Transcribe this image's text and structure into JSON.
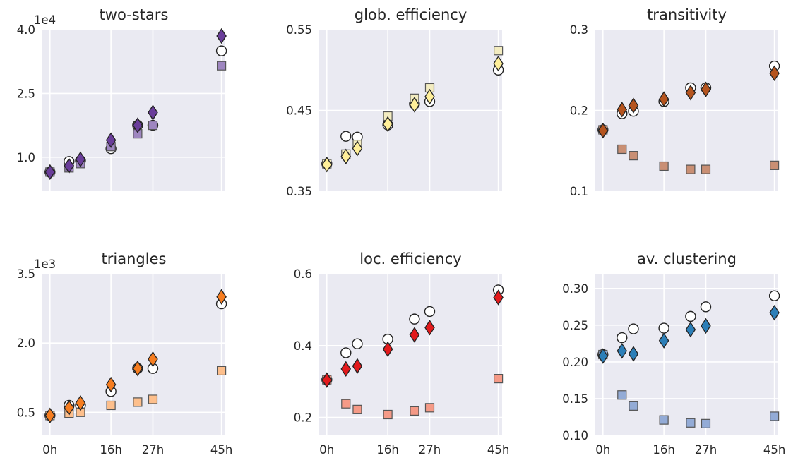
{
  "chart_data": [
    {
      "type": "scatter",
      "title": "two-stars",
      "offset_label": "1e4",
      "ylim": [
        0.2,
        4.0
      ],
      "yticks": [
        1.0,
        2.5,
        4.0
      ],
      "ytick_labels": [
        "1.0",
        "2.5",
        "4.0"
      ],
      "xlim": [
        -2,
        46
      ],
      "xticks": [
        0,
        16,
        27,
        45
      ],
      "xtick_labels": [],
      "colors": {
        "circle": "#ffffff",
        "square": "#9e86c0",
        "diamond": "#6a3d9a"
      },
      "series": [
        {
          "marker": "circle",
          "x": [
            0,
            5,
            8,
            16,
            23,
            27,
            45
          ],
          "y": [
            0.65,
            0.9,
            0.92,
            1.2,
            1.75,
            1.75,
            3.5
          ]
        },
        {
          "marker": "square",
          "x": [
            0,
            5,
            8,
            16,
            23,
            27,
            45
          ],
          "y": [
            0.65,
            0.75,
            0.85,
            1.25,
            1.55,
            1.75,
            3.15
          ]
        },
        {
          "marker": "diamond",
          "x": [
            0,
            5,
            8,
            16,
            23,
            27,
            45
          ],
          "y": [
            0.65,
            0.8,
            0.95,
            1.4,
            1.75,
            2.05,
            3.85
          ]
        }
      ]
    },
    {
      "type": "scatter",
      "title": "glob. efficiency",
      "offset_label": "",
      "ylim": [
        0.35,
        0.55
      ],
      "yticks": [
        0.35,
        0.45,
        0.55
      ],
      "ytick_labels": [
        "0.35",
        "0.45",
        "0.55"
      ],
      "xlim": [
        -2,
        46
      ],
      "xticks": [
        0,
        16,
        27,
        45
      ],
      "xtick_labels": [],
      "colors": {
        "circle": "#ffffff",
        "square": "#f3ecc0",
        "diamond": "#ffef99"
      },
      "series": [
        {
          "marker": "circle",
          "x": [
            0,
            5,
            8,
            16,
            23,
            27,
            45
          ],
          "y": [
            0.384,
            0.418,
            0.417,
            0.432,
            0.458,
            0.461,
            0.5
          ]
        },
        {
          "marker": "square",
          "x": [
            0,
            5,
            8,
            16,
            23,
            27,
            45
          ],
          "y": [
            0.384,
            0.396,
            0.408,
            0.443,
            0.465,
            0.478,
            0.524
          ]
        },
        {
          "marker": "diamond",
          "x": [
            0,
            5,
            8,
            16,
            23,
            27,
            45
          ],
          "y": [
            0.383,
            0.393,
            0.403,
            0.433,
            0.457,
            0.467,
            0.508
          ]
        }
      ]
    },
    {
      "type": "scatter",
      "title": "transitivity",
      "offset_label": "",
      "ylim": [
        0.1,
        0.3
      ],
      "yticks": [
        0.1,
        0.2,
        0.3
      ],
      "ytick_labels": [
        "0.1",
        "0.2",
        "0.3"
      ],
      "xlim": [
        -2,
        46
      ],
      "xticks": [
        0,
        16,
        27,
        45
      ],
      "xtick_labels": [],
      "colors": {
        "circle": "#ffffff",
        "square": "#c98f74",
        "diamond": "#b5541e"
      },
      "series": [
        {
          "marker": "circle",
          "x": [
            0,
            5,
            8,
            16,
            23,
            27,
            45
          ],
          "y": [
            0.176,
            0.196,
            0.199,
            0.211,
            0.228,
            0.228,
            0.255
          ]
        },
        {
          "marker": "square",
          "x": [
            0,
            5,
            8,
            16,
            23,
            27,
            45
          ],
          "y": [
            0.176,
            0.152,
            0.144,
            0.131,
            0.127,
            0.127,
            0.132
          ]
        },
        {
          "marker": "diamond",
          "x": [
            0,
            5,
            8,
            16,
            23,
            27,
            45
          ],
          "y": [
            0.175,
            0.201,
            0.206,
            0.214,
            0.222,
            0.226,
            0.246
          ]
        }
      ]
    },
    {
      "type": "scatter",
      "title": "triangles",
      "offset_label": "1e3",
      "ylim": [
        0.0,
        3.5
      ],
      "yticks": [
        0.5,
        2.0,
        3.5
      ],
      "ytick_labels": [
        "0.5",
        "2.0",
        "3.5"
      ],
      "xlim": [
        -2,
        46
      ],
      "xticks": [
        0,
        16,
        27,
        45
      ],
      "xtick_labels": [
        "0h",
        "16h",
        "27h",
        "45h"
      ],
      "colors": {
        "circle": "#ffffff",
        "square": "#fdbf8c",
        "diamond": "#f67d20"
      },
      "series": [
        {
          "marker": "circle",
          "x": [
            0,
            5,
            8,
            16,
            23,
            27,
            45
          ],
          "y": [
            0.43,
            0.65,
            0.65,
            0.95,
            1.45,
            1.45,
            2.85
          ]
        },
        {
          "marker": "square",
          "x": [
            0,
            5,
            8,
            16,
            23,
            27,
            45
          ],
          "y": [
            0.43,
            0.48,
            0.5,
            0.65,
            0.72,
            0.78,
            1.4
          ]
        },
        {
          "marker": "diamond",
          "x": [
            0,
            5,
            8,
            16,
            23,
            27,
            45
          ],
          "y": [
            0.43,
            0.6,
            0.7,
            1.1,
            1.45,
            1.65,
            3.0
          ]
        }
      ]
    },
    {
      "type": "scatter",
      "title": "loc. efficiency",
      "offset_label": "",
      "ylim": [
        0.15,
        0.6
      ],
      "yticks": [
        0.2,
        0.4,
        0.6
      ],
      "ytick_labels": [
        "0.2",
        "0.4",
        "0.6"
      ],
      "xlim": [
        -2,
        46
      ],
      "xticks": [
        0,
        16,
        27,
        45
      ],
      "xtick_labels": [
        "0h",
        "16h",
        "27h",
        "45h"
      ],
      "colors": {
        "circle": "#ffffff",
        "square": "#f59a87",
        "diamond": "#e31a1c"
      },
      "series": [
        {
          "marker": "circle",
          "x": [
            0,
            5,
            8,
            16,
            23,
            27,
            45
          ],
          "y": [
            0.305,
            0.38,
            0.405,
            0.418,
            0.474,
            0.495,
            0.555
          ]
        },
        {
          "marker": "square",
          "x": [
            0,
            5,
            8,
            16,
            23,
            27,
            45
          ],
          "y": [
            0.305,
            0.238,
            0.222,
            0.208,
            0.218,
            0.227,
            0.308
          ]
        },
        {
          "marker": "diamond",
          "x": [
            0,
            5,
            8,
            16,
            23,
            27,
            45
          ],
          "y": [
            0.304,
            0.335,
            0.343,
            0.39,
            0.43,
            0.45,
            0.534
          ]
        }
      ]
    },
    {
      "type": "scatter",
      "title": "av. clustering",
      "offset_label": "",
      "ylim": [
        0.1,
        0.32
      ],
      "yticks": [
        0.1,
        0.15,
        0.2,
        0.25,
        0.3
      ],
      "ytick_labels": [
        "0.10",
        "0.15",
        "0.20",
        "0.25",
        "0.30"
      ],
      "xlim": [
        -2,
        46
      ],
      "xticks": [
        0,
        16,
        27,
        45
      ],
      "xtick_labels": [
        "0h",
        "16h",
        "27h",
        "45h"
      ],
      "colors": {
        "circle": "#ffffff",
        "square": "#93abd6",
        "diamond": "#2c7fb8"
      },
      "series": [
        {
          "marker": "circle",
          "x": [
            0,
            5,
            8,
            16,
            23,
            27,
            45
          ],
          "y": [
            0.21,
            0.233,
            0.245,
            0.246,
            0.262,
            0.275,
            0.29
          ]
        },
        {
          "marker": "square",
          "x": [
            0,
            5,
            8,
            16,
            23,
            27,
            45
          ],
          "y": [
            0.21,
            0.155,
            0.14,
            0.121,
            0.117,
            0.116,
            0.126
          ]
        },
        {
          "marker": "diamond",
          "x": [
            0,
            5,
            8,
            16,
            23,
            27,
            45
          ],
          "y": [
            0.208,
            0.215,
            0.211,
            0.229,
            0.244,
            0.249,
            0.267
          ]
        }
      ]
    }
  ],
  "style": {
    "plot_background": "#eaeaf2",
    "grid": "#ffffff",
    "marker_edge": "#222222",
    "text": "#262626"
  }
}
